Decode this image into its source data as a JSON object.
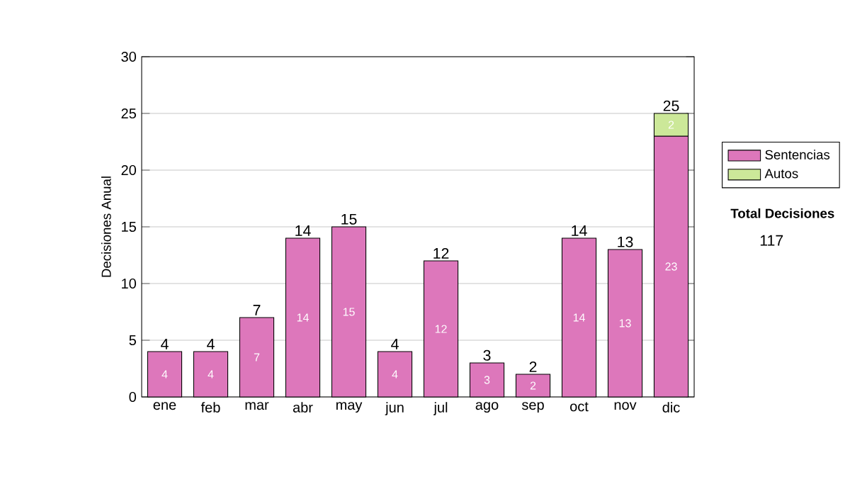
{
  "chart_data": {
    "type": "bar",
    "stacked": true,
    "ylabel": "Decisiones Anual",
    "categories": [
      "ene",
      "feb",
      "mar",
      "abr",
      "may",
      "jun",
      "jul",
      "ago",
      "sep",
      "oct",
      "nov",
      "dic"
    ],
    "series": [
      {
        "name": "Sentencias",
        "color": "#dd77bb",
        "values": [
          4,
          4,
          7,
          14,
          15,
          4,
          12,
          3,
          2,
          14,
          13,
          23
        ]
      },
      {
        "name": "Autos",
        "color": "#cce899",
        "values": [
          null,
          null,
          null,
          null,
          null,
          null,
          null,
          null,
          null,
          null,
          null,
          2
        ]
      }
    ],
    "totals": [
      "4",
      "4",
      "7",
      "14",
      "15",
      "4",
      "12",
      "3",
      "2",
      "14",
      "13",
      "25"
    ],
    "ylim": [
      0,
      30
    ],
    "yticks": [
      0,
      5,
      10,
      15,
      20,
      25,
      30
    ],
    "grid": "y",
    "legend": "right",
    "data_labels": true,
    "annotations": [
      "Total Decisiones",
      "117"
    ]
  }
}
